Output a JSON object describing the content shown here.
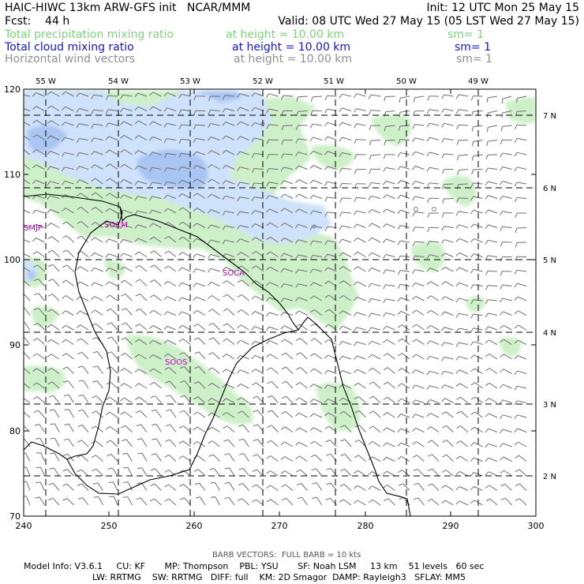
{
  "header": {
    "title": "HAIC-HIWC 13km ARW-GFS init   NCAR/MMM",
    "init": "Init: 12 UTC Mon 25 May 15",
    "fcst": "Fcst:    44 h",
    "valid": "Valid: 08 UTC Wed 27 May 15 (05 LST Wed 27 May 15)"
  },
  "legend": [
    {
      "name": "Total precipitation mixing ratio",
      "height": "at height = 10.00 km",
      "sm": "sm= 1",
      "color": "#7fd27f"
    },
    {
      "name": "Total cloud mixing ratio",
      "height": "at height = 10.00 km",
      "sm": "sm= 1",
      "color": "#1515c8"
    },
    {
      "name": "Horizontal wind vectors",
      "height": "at height = 10.00 km",
      "sm": "sm= 1",
      "color": "#909090"
    }
  ],
  "map": {
    "x_ticks": [
      "240",
      "250",
      "260",
      "270",
      "280",
      "290",
      "300"
    ],
    "y_ticks": [
      "70",
      "80",
      "90",
      "100",
      "110",
      "120"
    ],
    "lon_labels": [
      "55 W",
      "54 W",
      "53 W",
      "52 W",
      "51 W",
      "50 W",
      "49 W"
    ],
    "lat_labels": [
      "7 N",
      "6 N",
      "5 N",
      "4 N",
      "3 N",
      "2 N"
    ],
    "stations": [
      "SMJP",
      "SOCM",
      "SOCA",
      "SOOS"
    ],
    "precip_color": "#cdf0c8",
    "cloud_light": "#cfe2fb",
    "cloud_mid": "#a9c6f3",
    "station_color": "#c800c8"
  },
  "footer": {
    "barb_note": "BARB VECTORS:  FULL BARB = 10 kts",
    "model_line1": "Model Info: V3.6.1     CU: KF       MP: Thompson    PBL: YSU       SF: Noah LSM     13 km    51 levels   60 sec",
    "model_line2": "LW: RRTMG    SW: RRTMG   DIFF: full    KM: 2D Smagor  DAMP: Rayleigh3   SFLAY: MM5"
  }
}
